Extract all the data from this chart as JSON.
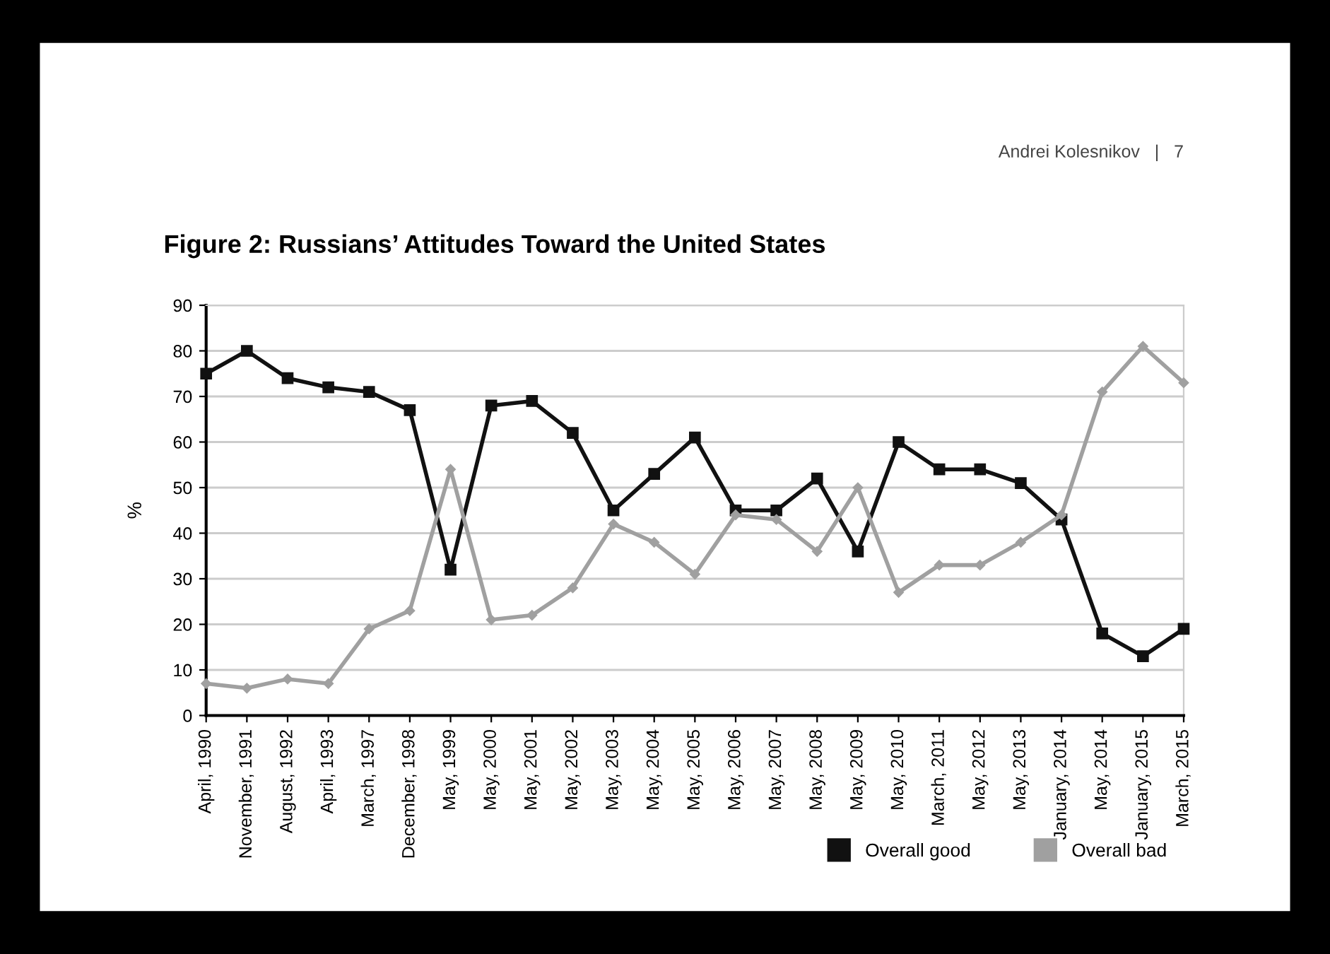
{
  "chart_data": {
    "type": "line",
    "title": "Figure 2: Russians’ Attitudes Toward the United States",
    "ylabel": "%",
    "annotations": [
      "Andrei Kolesnikov   |   7"
    ],
    "categories": [
      "April, 1990",
      "November, 1991",
      "August, 1992",
      "April, 1993",
      "March, 1997",
      "December, 1998",
      "May, 1999",
      "May, 2000",
      "May, 2001",
      "May, 2002",
      "May, 2003",
      "May, 2004",
      "May, 2005",
      "May, 2006",
      "May, 2007",
      "May, 2008",
      "May, 2009",
      "May, 2010",
      "March, 2011",
      "May, 2012",
      "May, 2013",
      "January, 2014",
      "May, 2014",
      "January, 2015",
      "March, 2015"
    ],
    "series": [
      {
        "name": "Overall good",
        "color": "#111111",
        "marker": "square",
        "values": [
          75,
          80,
          74,
          72,
          71,
          67,
          32,
          68,
          69,
          62,
          45,
          53,
          61,
          45,
          45,
          52,
          36,
          60,
          54,
          54,
          51,
          43,
          18,
          13,
          19
        ]
      },
      {
        "name": "Overall bad",
        "color": "#a0a0a0",
        "marker": "diamond",
        "values": [
          7,
          6,
          8,
          7,
          19,
          23,
          54,
          21,
          22,
          28,
          42,
          38,
          31,
          44,
          43,
          36,
          50,
          27,
          33,
          33,
          38,
          44,
          71,
          81,
          73
        ]
      }
    ],
    "ylim": [
      0,
      90
    ],
    "yticks": [
      0,
      10,
      20,
      30,
      40,
      50,
      60,
      70,
      80,
      90
    ],
    "grid": "y",
    "legend": "bottom right",
    "line_style": "solid"
  }
}
